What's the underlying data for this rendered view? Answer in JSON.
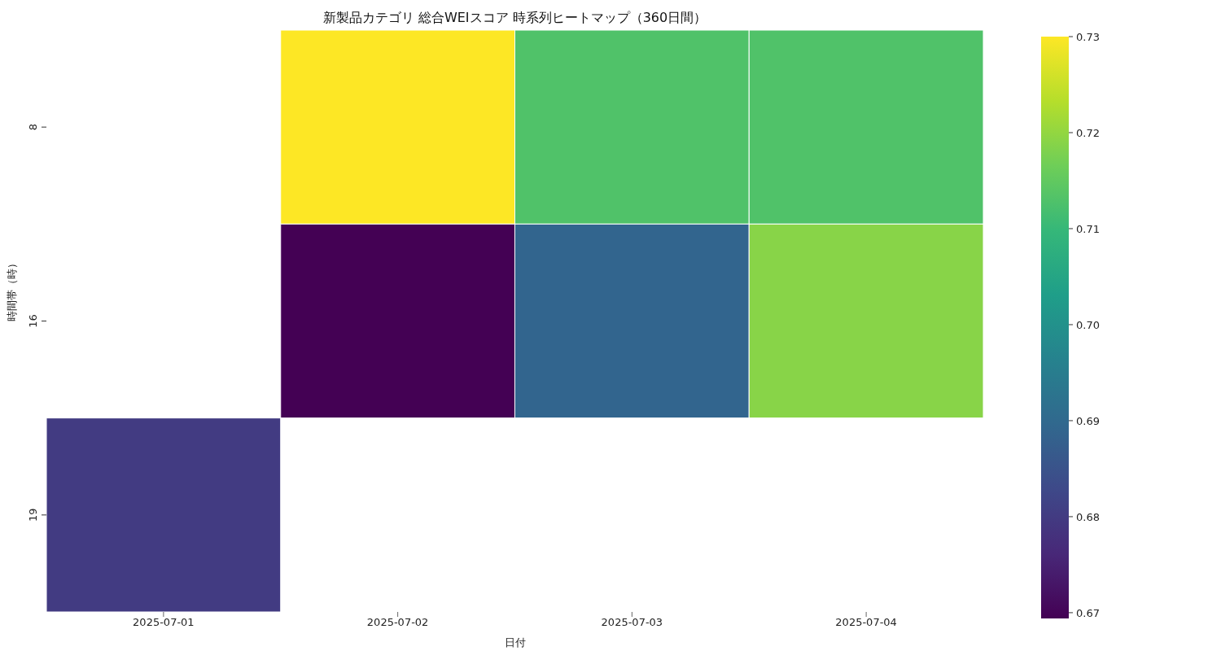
{
  "chart_data": {
    "type": "heatmap",
    "title": "新製品カテゴリ 総合WEIスコア 時系列ヒートマップ（360日間）",
    "xlabel": "日付",
    "ylabel": "時間帯（時）",
    "categories": [
      "2025-07-01",
      "2025-07-02",
      "2025-07-03",
      "2025-07-04"
    ],
    "y_categories": [
      "8",
      "16",
      "19"
    ],
    "cells": [
      [
        null,
        0.73,
        0.713,
        0.713
      ],
      [
        null,
        0.669,
        0.689,
        0.719
      ],
      [
        0.68,
        null,
        null,
        null
      ]
    ],
    "clim": [
      0.6694,
      0.73
    ],
    "cticks": [
      0.67,
      0.68,
      0.69,
      {
        "value": 0.7,
        "label": "0.70"
      },
      0.71,
      0.72,
      0.73
    ]
  }
}
